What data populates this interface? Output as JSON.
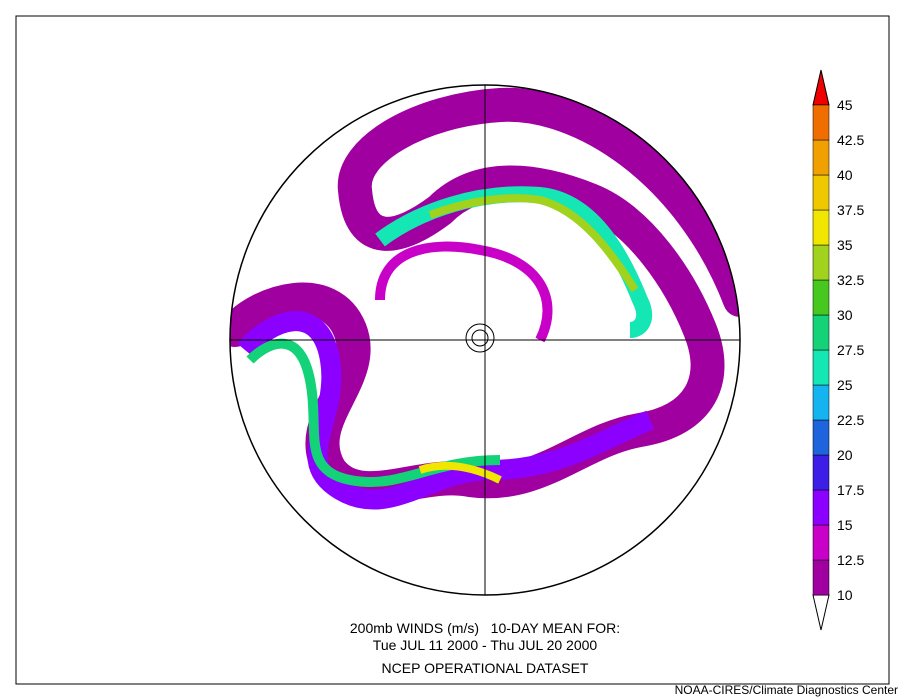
{
  "caption": [
    "200mb WINDS (m/s)   10-DAY MEAN FOR:",
    "Tue JUL 11 2000 - Thu JUL 20 2000",
    "NCEP OPERATIONAL DATASET"
  ],
  "credit": "NOAA-CIRES/Climate Diagnostics Center",
  "colorbar": {
    "levels": [
      10,
      12.5,
      15,
      17.5,
      20,
      22.5,
      25,
      27.5,
      30,
      32.5,
      35,
      37.5,
      40,
      42.5,
      45
    ],
    "below_color": "#ffffff",
    "colors": [
      "#a000a0",
      "#c800c8",
      "#8c00ff",
      "#3c1ee6",
      "#1e64dc",
      "#14b4f0",
      "#14e6b4",
      "#14d278",
      "#46c81e",
      "#a0d21e",
      "#f0e600",
      "#f0c800",
      "#f0a000",
      "#f06e00"
    ],
    "above_color": "#f00000"
  }
}
